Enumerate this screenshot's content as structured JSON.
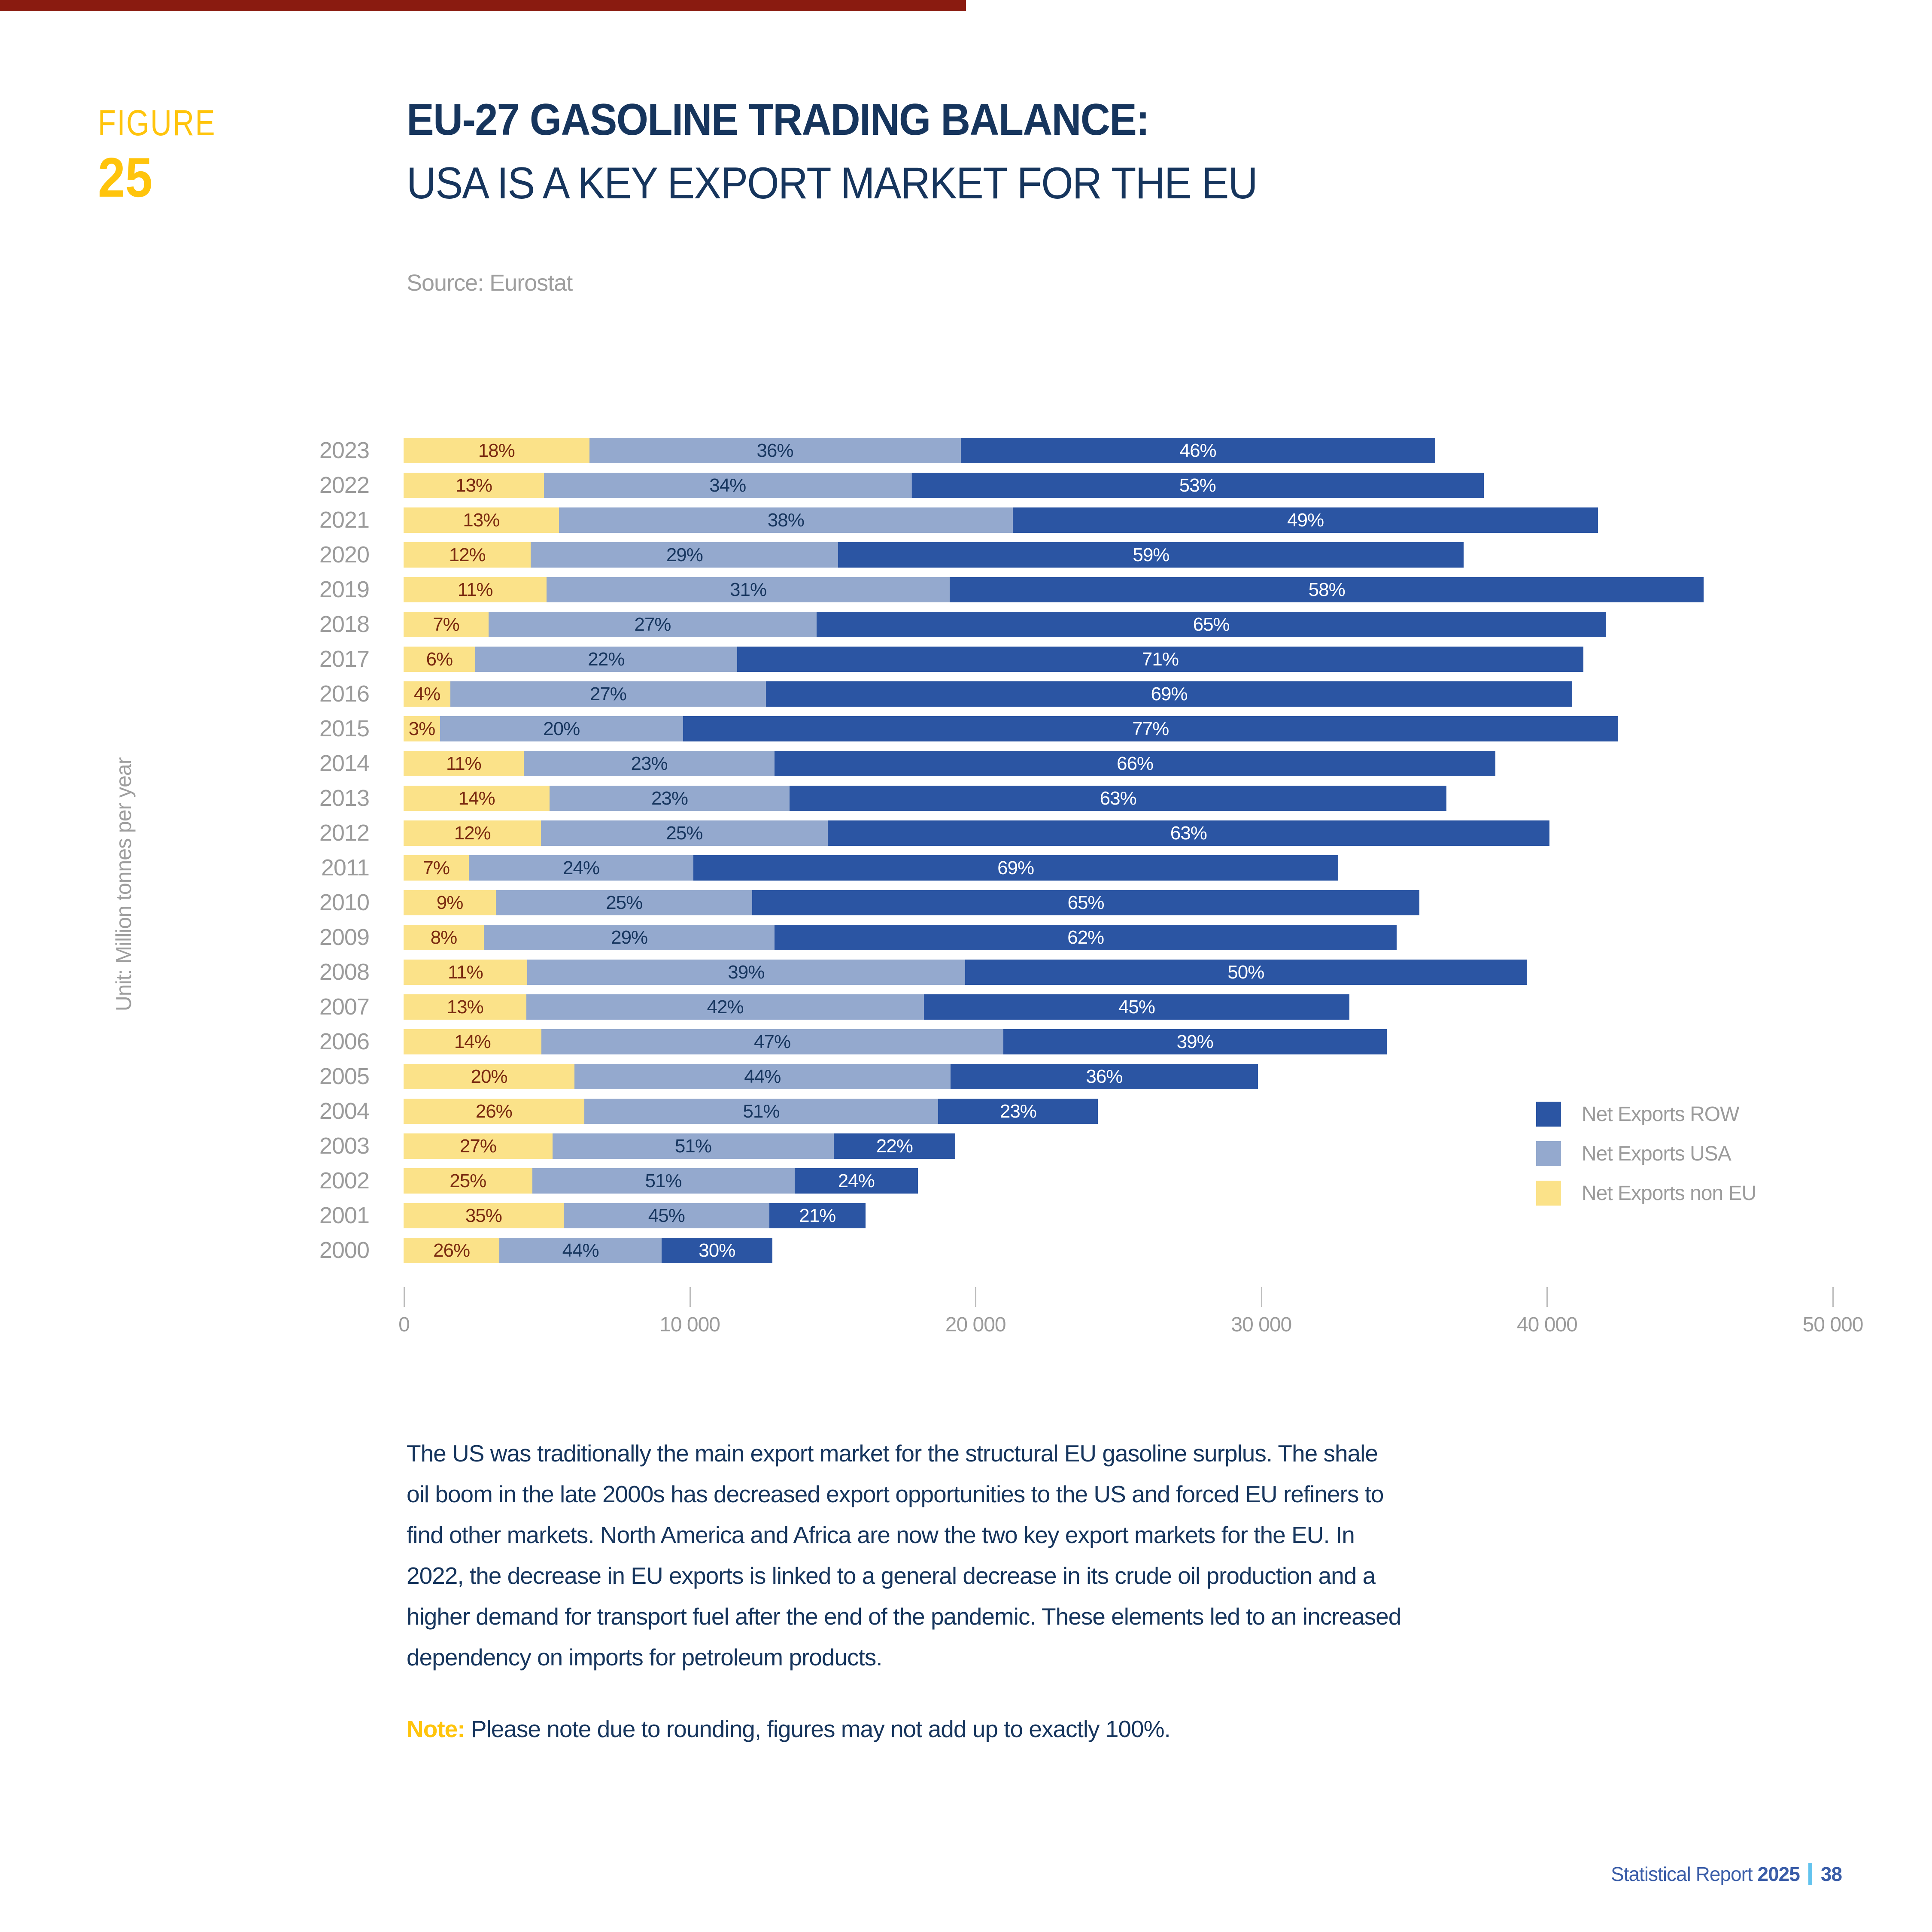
{
  "page": {
    "figure_label": "FIGURE",
    "figure_number": "25",
    "title_line1": "EU-27 GASOLINE TRADING BALANCE:",
    "title_line2": "USA IS A KEY EXPORT MARKET FOR THE EU",
    "source": "Source: Eurostat",
    "unit_label": "Unit: Million tonnes per year",
    "body_lines": [
      "The US was traditionally the main export market for the structural EU gasoline surplus. The shale",
      "oil boom in the late 2000s has decreased export opportunities to the US and forced EU refiners to",
      "find other markets. North America and Africa are now the two key export markets for the EU. In",
      "2022, the decrease in EU exports is linked to a general decrease in its crude oil production and a",
      "higher demand for transport fuel after the end of the pandemic. These elements led to an increased",
      "dependency on imports for petroleum products."
    ],
    "note_label": "Note:",
    "note_text": " Please note due to rounding, figures may not add up to exactly 100%.",
    "footer": {
      "report": "Statistical Report",
      "year": "2025",
      "page": "38"
    }
  },
  "colors": {
    "accent_bar_red": "#8A1B10",
    "figure_yellow": "#FFC40C",
    "title_navy": "#16355D",
    "grey_text": "#9E9E9E",
    "axis_grey": "#9B9B9B",
    "footer_blue": "#3A5DA8",
    "footer_separator_blue": "#63C3EE"
  },
  "chart_data": {
    "type": "bar",
    "orientation": "horizontal",
    "stacked": true,
    "title": "EU-27 GASOLINE TRADING BALANCE: USA IS A KEY EXPORT MARKET FOR THE EU",
    "source": "Eurostat",
    "ylabel": "Unit: Million tonnes per year",
    "xlim": [
      0,
      50000
    ],
    "x_tick_labels": [
      "0",
      "10 000",
      "20 000",
      "30 000",
      "40 000",
      "50 000"
    ],
    "x_tick_values": [
      0,
      10000,
      20000,
      30000,
      40000,
      50000
    ],
    "grid": false,
    "legend_position": "right",
    "legend_order": [
      "Net Exports ROW",
      "Net Exports USA",
      "Net Exports non EU"
    ],
    "categories": [
      2023,
      2022,
      2021,
      2020,
      2019,
      2018,
      2017,
      2016,
      2015,
      2014,
      2013,
      2012,
      2011,
      2010,
      2009,
      2008,
      2007,
      2006,
      2005,
      2004,
      2003,
      2002,
      2001,
      2000
    ],
    "totals_estimated": [
      36100,
      37800,
      41800,
      37100,
      45500,
      42500,
      41700,
      40900,
      42500,
      38200,
      36500,
      40100,
      32700,
      35900,
      35100,
      39300,
      33100,
      34400,
      29900,
      24300,
      19300,
      18000,
      16000,
      12900
    ],
    "series": [
      {
        "name": "Net Exports non EU",
        "color": "#FBE289",
        "label_color": "#7A2A10",
        "percents": [
          18,
          13,
          13,
          12,
          11,
          7,
          6,
          4,
          3,
          11,
          14,
          12,
          7,
          9,
          8,
          11,
          13,
          14,
          20,
          26,
          27,
          25,
          35,
          26
        ]
      },
      {
        "name": "Net Exports USA",
        "color": "#94A9CE",
        "label_color": "#17365F",
        "percents": [
          36,
          34,
          38,
          29,
          31,
          27,
          22,
          27,
          20,
          23,
          23,
          25,
          24,
          25,
          29,
          39,
          42,
          47,
          44,
          51,
          51,
          51,
          45,
          44
        ]
      },
      {
        "name": "Net Exports ROW",
        "color": "#2B55A3",
        "label_color": "#FFFFFF",
        "percents": [
          46,
          53,
          49,
          59,
          58,
          65,
          71,
          69,
          77,
          66,
          63,
          63,
          69,
          65,
          62,
          50,
          45,
          39,
          36,
          23,
          22,
          24,
          21,
          30
        ]
      }
    ]
  }
}
